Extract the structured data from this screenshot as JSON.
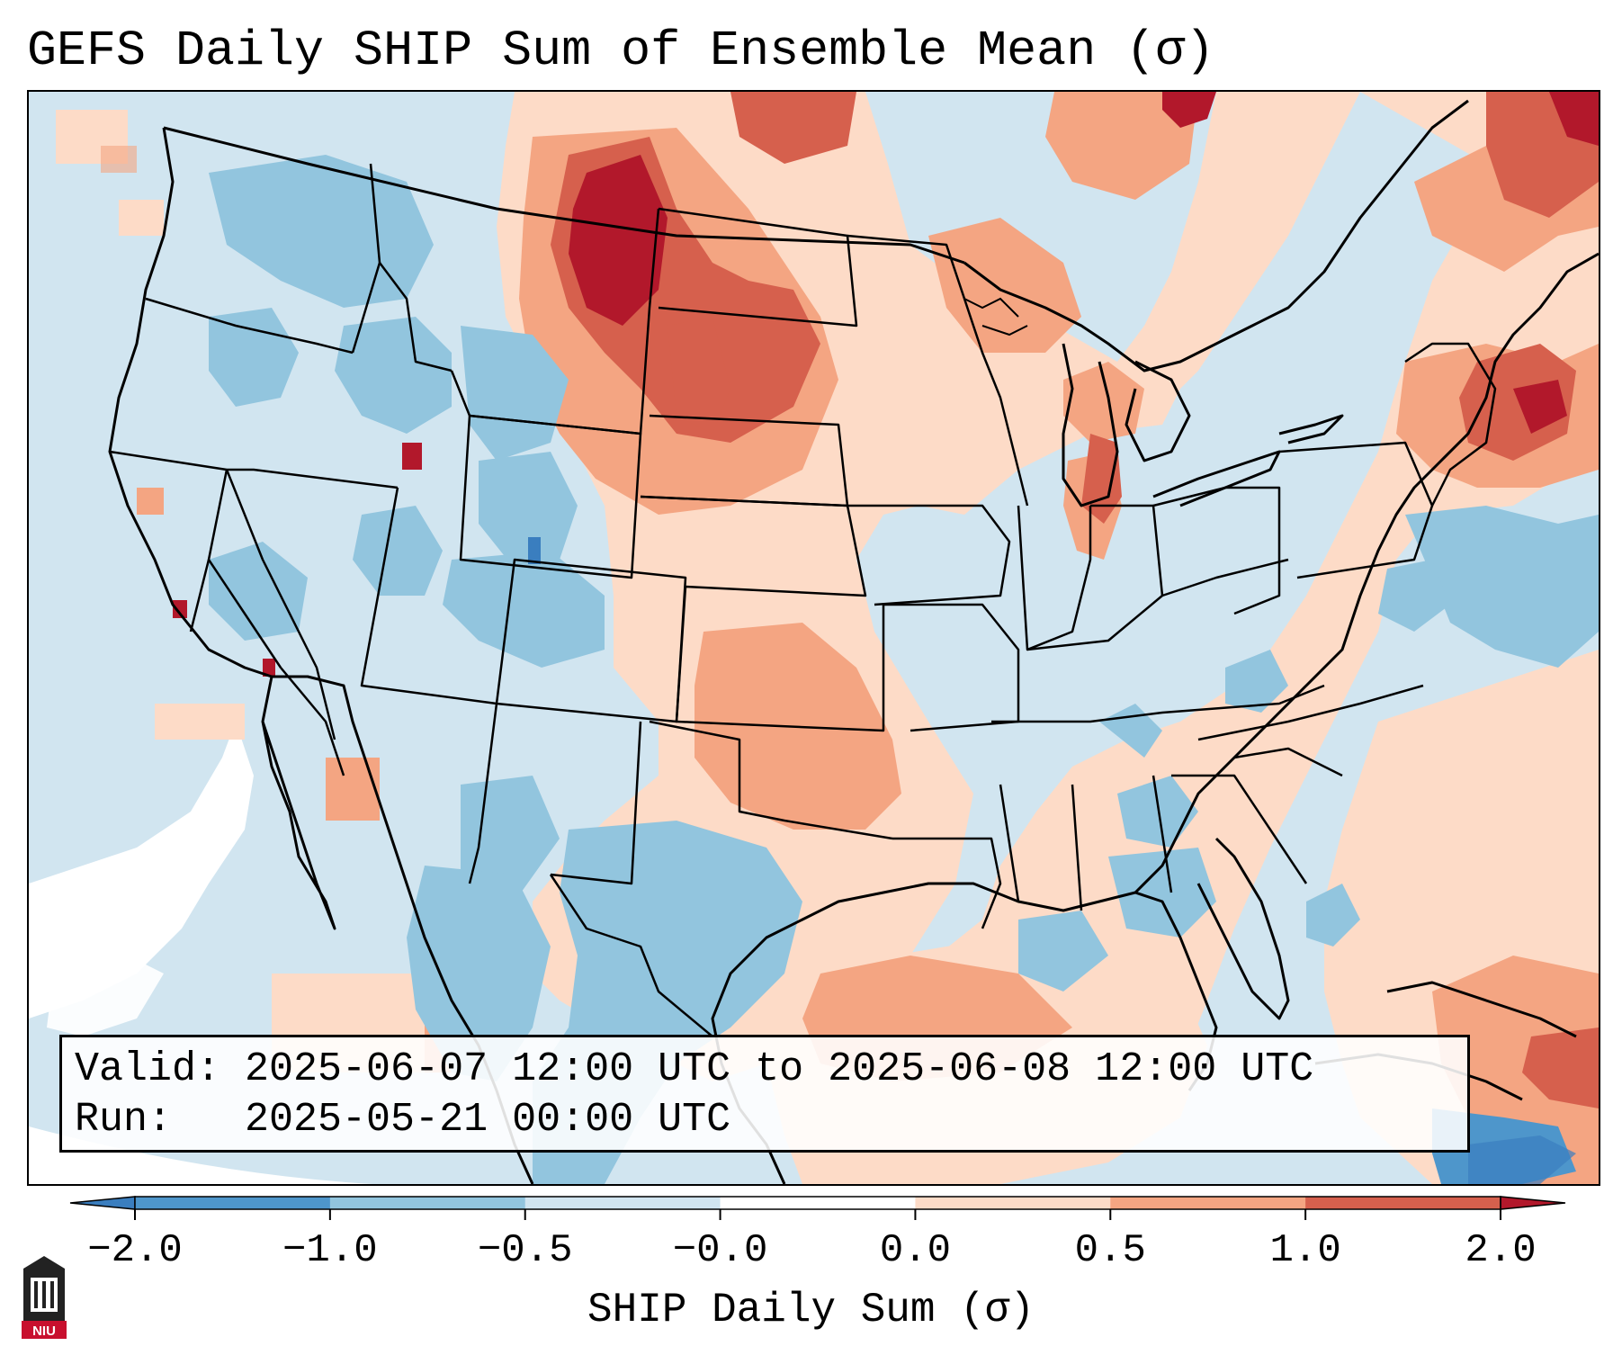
{
  "title": "GEFS Daily SHIP Sum of Ensemble Mean (σ)",
  "info": {
    "valid_line": "Valid: 2025-06-07 12:00 UTC to 2025-06-08 12:00 UTC",
    "run_line": "Run:   2025-05-21 00:00 UTC"
  },
  "colorbar": {
    "label": "SHIP Daily Sum (σ)",
    "tick_labels": [
      "−2.0",
      "−1.0",
      "−0.5",
      "−0.0",
      "0.0",
      "0.5",
      "1.0",
      "2.0"
    ],
    "bins": [
      {
        "range": "< -2.0",
        "color": "#3a7ebf"
      },
      {
        "range": "-2.0 to -1.0",
        "color": "#4e96cb"
      },
      {
        "range": "-1.0 to -0.5",
        "color": "#92c5de"
      },
      {
        "range": "-0.5 to -0.0",
        "color": "#d1e5f0"
      },
      {
        "range": "-0.0 to 0.0",
        "color": "#ffffff"
      },
      {
        "range": "0.0 to 0.5",
        "color": "#fddbc7"
      },
      {
        "range": "0.5 to 1.0",
        "color": "#f4a582"
      },
      {
        "range": "1.0 to 2.0",
        "color": "#d6604d"
      },
      {
        "range": "> 2.0",
        "color": "#b2182b"
      }
    ]
  },
  "logo": {
    "text": "NIU",
    "color": "#c8102e"
  },
  "colors": {
    "ocean_base": "#d1e5f0",
    "land_base": "#fddbc7",
    "white_zone": "#ffffff"
  }
}
